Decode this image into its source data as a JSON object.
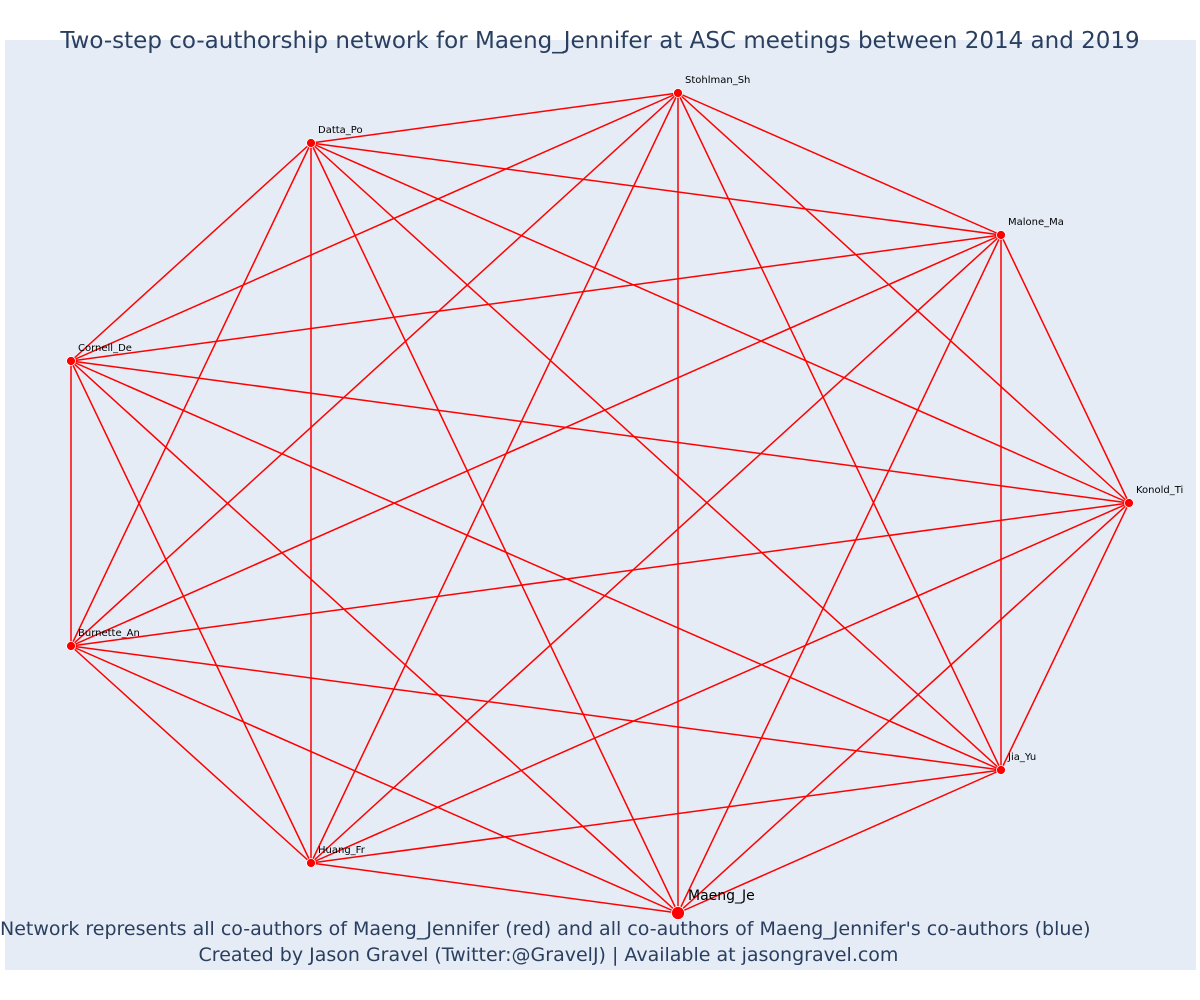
{
  "title": "Two-step co-authorship network for Maeng_Jennifer at ASC meetings between 2014 and 2019",
  "caption": {
    "line1": "Network represents all co-authors of Maeng_Jennifer (red) and all co-authors of Maeng_Jennifer's co-authors (blue)",
    "line2": "Created by Jason Gravel (Twitter:@GravelJ) | Available at jasongravel.com"
  },
  "colors": {
    "edge": "#ff0000",
    "node": "#ff0000",
    "background": "#e5ecf6",
    "text": "#2a3f5f"
  },
  "network": {
    "focal_node": "Maeng_Je",
    "nodes": [
      "Maeng_Je",
      "Huang_Fr",
      "Burnette_An",
      "Cornell_De",
      "Datta_Po",
      "Stohlman_Sh",
      "Malone_Ma",
      "Konold_Ti",
      "Jia_Yu"
    ],
    "edges": [
      [
        "Maeng_Je",
        "Huang_Fr"
      ],
      [
        "Maeng_Je",
        "Burnette_An"
      ],
      [
        "Maeng_Je",
        "Cornell_De"
      ],
      [
        "Maeng_Je",
        "Datta_Po"
      ],
      [
        "Maeng_Je",
        "Stohlman_Sh"
      ],
      [
        "Maeng_Je",
        "Malone_Ma"
      ],
      [
        "Maeng_Je",
        "Konold_Ti"
      ],
      [
        "Maeng_Je",
        "Jia_Yu"
      ],
      [
        "Huang_Fr",
        "Burnette_An"
      ],
      [
        "Huang_Fr",
        "Cornell_De"
      ],
      [
        "Huang_Fr",
        "Datta_Po"
      ],
      [
        "Huang_Fr",
        "Stohlman_Sh"
      ],
      [
        "Huang_Fr",
        "Malone_Ma"
      ],
      [
        "Huang_Fr",
        "Konold_Ti"
      ],
      [
        "Huang_Fr",
        "Jia_Yu"
      ],
      [
        "Burnette_An",
        "Cornell_De"
      ],
      [
        "Burnette_An",
        "Datta_Po"
      ],
      [
        "Burnette_An",
        "Stohlman_Sh"
      ],
      [
        "Burnette_An",
        "Malone_Ma"
      ],
      [
        "Burnette_An",
        "Konold_Ti"
      ],
      [
        "Burnette_An",
        "Jia_Yu"
      ],
      [
        "Cornell_De",
        "Datta_Po"
      ],
      [
        "Cornell_De",
        "Stohlman_Sh"
      ],
      [
        "Cornell_De",
        "Malone_Ma"
      ],
      [
        "Cornell_De",
        "Konold_Ti"
      ],
      [
        "Cornell_De",
        "Jia_Yu"
      ],
      [
        "Datta_Po",
        "Stohlman_Sh"
      ],
      [
        "Datta_Po",
        "Malone_Ma"
      ],
      [
        "Datta_Po",
        "Konold_Ti"
      ],
      [
        "Datta_Po",
        "Jia_Yu"
      ],
      [
        "Stohlman_Sh",
        "Malone_Ma"
      ],
      [
        "Stohlman_Sh",
        "Konold_Ti"
      ],
      [
        "Stohlman_Sh",
        "Jia_Yu"
      ],
      [
        "Malone_Ma",
        "Konold_Ti"
      ],
      [
        "Malone_Ma",
        "Jia_Yu"
      ],
      [
        "Konold_Ti",
        "Jia_Yu"
      ]
    ]
  }
}
